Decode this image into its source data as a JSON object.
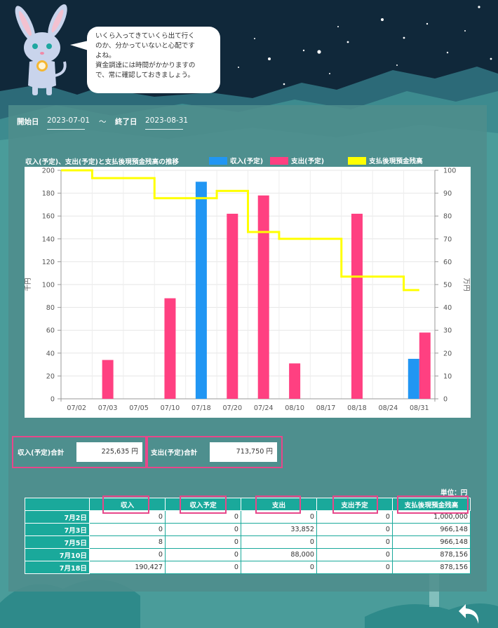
{
  "speech_bubble": {
    "text": "いくら入ってきていくら出て行く\nのか、分かっていないと心配です\nよね。\n資金調達には時間がかかりますの\nで、常に確認しておきましょう。"
  },
  "date_range": {
    "start_label": "開始日",
    "start_value": "2023-07-01",
    "separator": "～",
    "end_label": "終了日",
    "end_value": "2023-08-31"
  },
  "chart_data": {
    "type": "bar",
    "title": "収入(予定)、支出(予定)と支払後現預金残高の推移",
    "categories": [
      "07/02",
      "07/03",
      "07/05",
      "07/10",
      "07/18",
      "07/20",
      "07/24",
      "08/10",
      "08/17",
      "08/18",
      "08/24",
      "08/31"
    ],
    "series": [
      {
        "name": "収入(予定)",
        "type": "bar",
        "axis": "left",
        "color": "#2196f3",
        "values": [
          0,
          0,
          0,
          0,
          190,
          0,
          0,
          0,
          0,
          0,
          0,
          35
        ]
      },
      {
        "name": "支出(予定)",
        "type": "bar",
        "axis": "left",
        "color": "#ff4081",
        "values": [
          0,
          34,
          0,
          88,
          0,
          162,
          178,
          31,
          0,
          162,
          0,
          58
        ]
      },
      {
        "name": "支払後現預金残高",
        "type": "step-line",
        "axis": "right",
        "color": "#ffff00",
        "values": [
          100,
          96.6,
          96.6,
          87.8,
          87.8,
          91,
          73,
          70,
          70,
          53.5,
          53.5,
          47.6
        ]
      }
    ],
    "ylabel_left": "千円",
    "ylabel_right": "万円",
    "ylim_left": [
      0,
      200
    ],
    "ylim_right": [
      0,
      100
    ],
    "yticks_left": [
      0,
      20,
      40,
      60,
      80,
      100,
      120,
      140,
      160,
      180,
      200
    ],
    "yticks_right": [
      0,
      10,
      20,
      30,
      40,
      50,
      60,
      70,
      80,
      90,
      100
    ],
    "grid": true,
    "legend_position": "top-right"
  },
  "totals": {
    "income_label": "収入(予定)合計",
    "income_value": "225,635 円",
    "expense_label": "支出(予定)合計",
    "expense_value": "713,750 円"
  },
  "table": {
    "unit_label": "単位：円",
    "headers": [
      "",
      "収入",
      "収入予定",
      "支出",
      "支出予定",
      "支払後現預金残高"
    ],
    "rows": [
      [
        "7月2日",
        "0",
        "0",
        "0",
        "0",
        "1,000,000"
      ],
      [
        "7月3日",
        "0",
        "0",
        "33,852",
        "0",
        "966,148"
      ],
      [
        "7月5日",
        "8",
        "0",
        "0",
        "0",
        "966,148"
      ],
      [
        "7月10日",
        "0",
        "0",
        "88,000",
        "0",
        "878,156"
      ],
      [
        "7月18日",
        "190,427",
        "0",
        "0",
        "0",
        "878,156"
      ]
    ]
  },
  "colors": {
    "accent_teal": "#1aa99b",
    "highlight_pink": "#e7478a",
    "income_blue": "#2196f3",
    "expense_pink": "#ff4081",
    "balance_yellow": "#ffff00"
  },
  "icons": {
    "back": "back-arrow-icon",
    "mascot": "rabbit-mascot-icon"
  }
}
